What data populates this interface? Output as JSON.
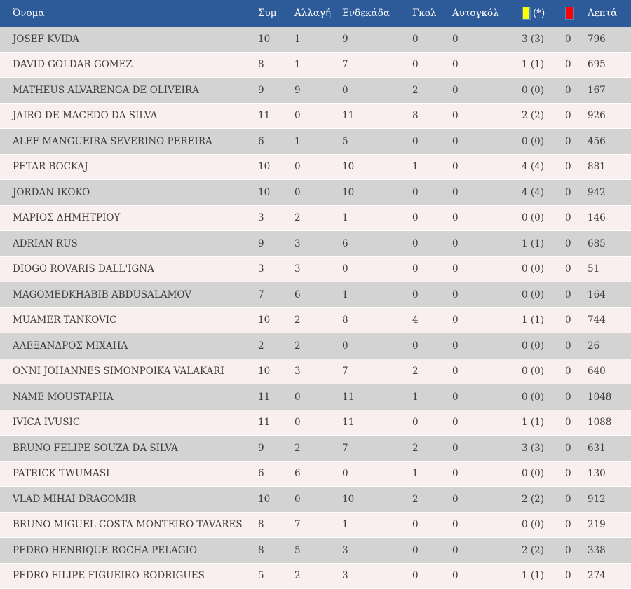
{
  "colors": {
    "header_bg": "#2d5a99",
    "header_text": "#ffffff",
    "row_gray": "#d3d3d3",
    "row_pink": "#f9efee",
    "text": "#3d3d3d",
    "yellow_card": "#ffff00",
    "red_card": "#ff0000",
    "card_border": "#4d86c2"
  },
  "table": {
    "headers": {
      "name": "Όνομα",
      "appearances": "Συμ",
      "substitution": "Αλλαγή",
      "starting_eleven": "Ενδεκάδα",
      "goals": "Γκολ",
      "own_goals": "Αυτογκόλ",
      "yellow_cards_suffix": "(*)",
      "minutes": "Λεπτά"
    },
    "rows": [
      {
        "name": "JOSEF KVIDA",
        "appearances": "10",
        "substitution": "1",
        "starting_eleven": "9",
        "goals": "0",
        "own_goals": "0",
        "yellow_cards": "3 (3)",
        "red_cards": "0",
        "minutes": "796"
      },
      {
        "name": "DAVID GOLDAR GOMEZ",
        "appearances": "8",
        "substitution": "1",
        "starting_eleven": "7",
        "goals": "0",
        "own_goals": "0",
        "yellow_cards": "1 (1)",
        "red_cards": "0",
        "minutes": "695"
      },
      {
        "name": "MATHEUS ALVARENGA DE OLIVEIRA",
        "appearances": "9",
        "substitution": "9",
        "starting_eleven": "0",
        "goals": "2",
        "own_goals": "0",
        "yellow_cards": "0 (0)",
        "red_cards": "0",
        "minutes": "167"
      },
      {
        "name": "JAIRO DE MACEDO DA SILVA",
        "appearances": "11",
        "substitution": "0",
        "starting_eleven": "11",
        "goals": "8",
        "own_goals": "0",
        "yellow_cards": "2 (2)",
        "red_cards": "0",
        "minutes": "926"
      },
      {
        "name": "ALEF MANGUEIRA SEVERINO PEREIRA",
        "appearances": "6",
        "substitution": "1",
        "starting_eleven": "5",
        "goals": "0",
        "own_goals": "0",
        "yellow_cards": "0 (0)",
        "red_cards": "0",
        "minutes": "456"
      },
      {
        "name": "PETAR BOCKAJ",
        "appearances": "10",
        "substitution": "0",
        "starting_eleven": "10",
        "goals": "1",
        "own_goals": "0",
        "yellow_cards": "4 (4)",
        "red_cards": "0",
        "minutes": "881"
      },
      {
        "name": "JORDAN IKOKO",
        "appearances": "10",
        "substitution": "0",
        "starting_eleven": "10",
        "goals": "0",
        "own_goals": "0",
        "yellow_cards": "4 (4)",
        "red_cards": "0",
        "minutes": "942"
      },
      {
        "name": "ΜΑΡΙΟΣ ΔΗΜΗΤΡΙΟΥ",
        "appearances": "3",
        "substitution": "2",
        "starting_eleven": "1",
        "goals": "0",
        "own_goals": "0",
        "yellow_cards": "0 (0)",
        "red_cards": "0",
        "minutes": "146"
      },
      {
        "name": "ADRIAN RUS",
        "appearances": "9",
        "substitution": "3",
        "starting_eleven": "6",
        "goals": "0",
        "own_goals": "0",
        "yellow_cards": "1 (1)",
        "red_cards": "0",
        "minutes": "685"
      },
      {
        "name": "DIOGO ROVARIS DALL'IGNA",
        "appearances": "3",
        "substitution": "3",
        "starting_eleven": "0",
        "goals": "0",
        "own_goals": "0",
        "yellow_cards": "0 (0)",
        "red_cards": "0",
        "minutes": "51"
      },
      {
        "name": "MAGOMEDKHABIB ABDUSALAMOV",
        "appearances": "7",
        "substitution": "6",
        "starting_eleven": "1",
        "goals": "0",
        "own_goals": "0",
        "yellow_cards": "0 (0)",
        "red_cards": "0",
        "minutes": "164"
      },
      {
        "name": "MUAMER TANKOVIC",
        "appearances": "10",
        "substitution": "2",
        "starting_eleven": "8",
        "goals": "4",
        "own_goals": "0",
        "yellow_cards": "1 (1)",
        "red_cards": "0",
        "minutes": "744"
      },
      {
        "name": "ΑΛΕΞΑΝΔΡΟΣ ΜΙΧΑΗΛ",
        "appearances": "2",
        "substitution": "2",
        "starting_eleven": "0",
        "goals": "0",
        "own_goals": "0",
        "yellow_cards": "0 (0)",
        "red_cards": "0",
        "minutes": "26"
      },
      {
        "name": "ONNI JOHANNES SIMONPOIKA VALAKARI",
        "appearances": "10",
        "substitution": "3",
        "starting_eleven": "7",
        "goals": "2",
        "own_goals": "0",
        "yellow_cards": "0 (0)",
        "red_cards": "0",
        "minutes": "640"
      },
      {
        "name": "NAME MOUSTAPHA",
        "appearances": "11",
        "substitution": "0",
        "starting_eleven": "11",
        "goals": "1",
        "own_goals": "0",
        "yellow_cards": "0 (0)",
        "red_cards": "0",
        "minutes": "1048"
      },
      {
        "name": "IVICA IVUSIC",
        "appearances": "11",
        "substitution": "0",
        "starting_eleven": "11",
        "goals": "0",
        "own_goals": "0",
        "yellow_cards": "1 (1)",
        "red_cards": "0",
        "minutes": "1088"
      },
      {
        "name": "BRUNO FELIPE SOUZA DA SILVA",
        "appearances": "9",
        "substitution": "2",
        "starting_eleven": "7",
        "goals": "2",
        "own_goals": "0",
        "yellow_cards": "3 (3)",
        "red_cards": "0",
        "minutes": "631"
      },
      {
        "name": "PATRICK TWUMASI",
        "appearances": "6",
        "substitution": "6",
        "starting_eleven": "0",
        "goals": "1",
        "own_goals": "0",
        "yellow_cards": "0 (0)",
        "red_cards": "0",
        "minutes": "130"
      },
      {
        "name": "VLAD MIHAI DRAGOMIR",
        "appearances": "10",
        "substitution": "0",
        "starting_eleven": "10",
        "goals": "2",
        "own_goals": "0",
        "yellow_cards": "2 (2)",
        "red_cards": "0",
        "minutes": "912"
      },
      {
        "name": "BRUNO MIGUEL COSTA MONTEIRO TAVARES",
        "appearances": "8",
        "substitution": "7",
        "starting_eleven": "1",
        "goals": "0",
        "own_goals": "0",
        "yellow_cards": "0 (0)",
        "red_cards": "0",
        "minutes": "219"
      },
      {
        "name": "PEDRO HENRIQUE ROCHA PELAGIO",
        "appearances": "8",
        "substitution": "5",
        "starting_eleven": "3",
        "goals": "0",
        "own_goals": "0",
        "yellow_cards": "2 (2)",
        "red_cards": "0",
        "minutes": "338"
      },
      {
        "name": "PEDRO FILIPE FIGUEIRO RODRIGUES",
        "appearances": "5",
        "substitution": "2",
        "starting_eleven": "3",
        "goals": "0",
        "own_goals": "0",
        "yellow_cards": "1 (1)",
        "red_cards": "0",
        "minutes": "274"
      }
    ]
  }
}
